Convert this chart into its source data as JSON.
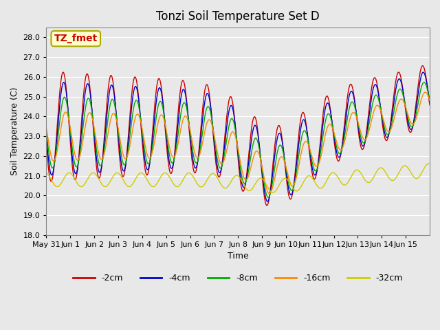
{
  "title": "Tonzi Soil Temperature Set D",
  "xlabel": "Time",
  "ylabel": "Soil Temperature (C)",
  "ylim": [
    18.0,
    28.5
  ],
  "yticks": [
    18.0,
    19.0,
    20.0,
    21.0,
    22.0,
    23.0,
    24.0,
    25.0,
    26.0,
    27.0,
    28.0
  ],
  "x_tick_labels": [
    "May 31",
    "Jun 1",
    "Jun 2",
    "Jun 3",
    "Jun 4",
    "Jun 5",
    "Jun 6",
    "Jun 7",
    "Jun 8",
    "Jun 9",
    "Jun 10",
    "Jun 11",
    "Jun 12",
    "Jun 13",
    "Jun 14",
    "Jun 15"
  ],
  "legend_labels": [
    "-2cm",
    "-4cm",
    "-8cm",
    "-16cm",
    "-32cm"
  ],
  "legend_colors": [
    "#cc0000",
    "#0000cc",
    "#00aa00",
    "#ff8800",
    "#cccc00"
  ],
  "line_colors": [
    "#cc0000",
    "#0000cc",
    "#00aa00",
    "#ff8800",
    "#cccc00"
  ],
  "annotation_text": "TZ_fmet",
  "annotation_bg": "#ffffcc",
  "annotation_border": "#aaaa00",
  "annotation_text_color": "#cc0000",
  "bg_color": "#e8e8e8"
}
